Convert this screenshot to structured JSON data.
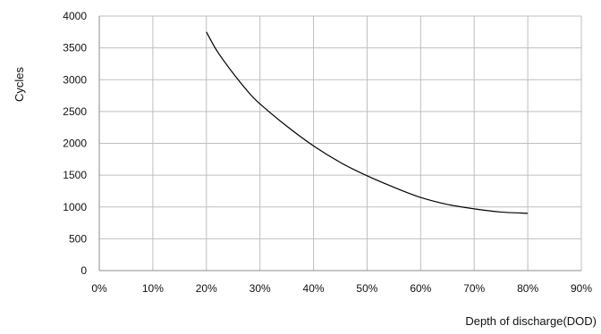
{
  "chart_data": {
    "type": "line",
    "title": "",
    "xlabel": "Depth of discharge(DOD)",
    "ylabel": "Cycles",
    "xlim": [
      0,
      90
    ],
    "ylim": [
      0,
      4000
    ],
    "x_ticks": [
      0,
      10,
      20,
      30,
      40,
      50,
      60,
      70,
      80,
      90
    ],
    "x_tick_labels": [
      "0%",
      "10%",
      "20%",
      "30%",
      "40%",
      "50%",
      "60%",
      "70%",
      "80%",
      "90%"
    ],
    "y_ticks": [
      0,
      500,
      1000,
      1500,
      2000,
      2500,
      3000,
      3500,
      4000
    ],
    "y_tick_labels": [
      "0",
      "500",
      "1000",
      "1500",
      "2000",
      "2500",
      "3000",
      "3500",
      "4000"
    ],
    "grid": true,
    "legend": "none",
    "series": [
      {
        "color": "#000000",
        "x": [
          20,
          22,
          25,
          28,
          30,
          35,
          40,
          45,
          50,
          55,
          60,
          65,
          70,
          75,
          80
        ],
        "y": [
          3750,
          3450,
          3100,
          2790,
          2620,
          2270,
          1960,
          1700,
          1490,
          1310,
          1150,
          1040,
          970,
          920,
          900
        ]
      }
    ]
  }
}
